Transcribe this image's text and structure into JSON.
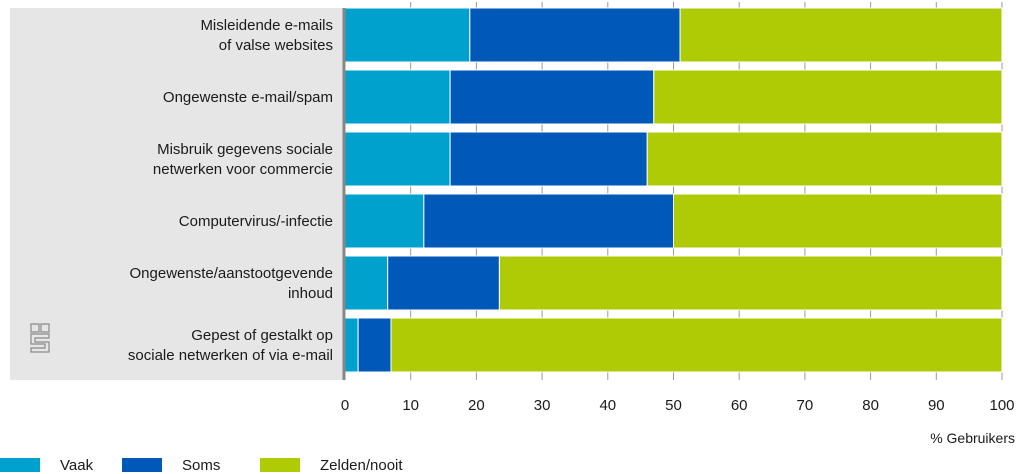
{
  "chart_data": {
    "type": "bar",
    "orientation": "horizontal",
    "stacked": true,
    "categories": [
      [
        "Misleidende e-mails",
        "of valse websites"
      ],
      [
        "Ongewenste e-mail/spam"
      ],
      [
        "Misbruik gegevens sociale",
        "netwerken voor commercie"
      ],
      [
        "Computervirus/-infectie"
      ],
      [
        "Ongewenste/aanstootgevende",
        "inhoud"
      ],
      [
        "Gepest of gestalkt op",
        "sociale netwerken of via e-mail"
      ]
    ],
    "series": [
      {
        "name": "Vaak",
        "color": "#00a1cd",
        "values": [
          19,
          16,
          16,
          12,
          6.5,
          2
        ]
      },
      {
        "name": "Soms",
        "color": "#0058b8",
        "values": [
          32,
          31,
          30,
          38,
          17,
          5
        ]
      },
      {
        "name": "Zelden/nooit",
        "color": "#afcb05",
        "values": [
          49,
          53,
          54,
          50,
          76.5,
          93
        ]
      }
    ],
    "xlabel": "% Gebruikers",
    "ylabel": "",
    "xlim": [
      0,
      100
    ],
    "xticks": [
      0,
      10,
      20,
      30,
      40,
      50,
      60,
      70,
      80,
      90,
      100
    ],
    "grid": true,
    "legend_position": "bottom-left",
    "label_panel_color": "#e6e6e6",
    "axis_color": "#878787",
    "logo_icon": "cbs-logo-icon"
  }
}
